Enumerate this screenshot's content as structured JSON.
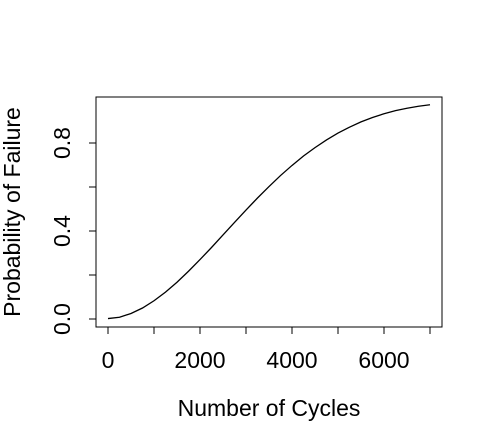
{
  "chart_data": {
    "type": "line",
    "title": "",
    "xlabel": "Number of Cycles",
    "ylabel": "Probability of Failure",
    "xlim": [
      0,
      7000
    ],
    "ylim": [
      0,
      1
    ],
    "x_ticks": [
      0,
      1000,
      2000,
      3000,
      4000,
      5000,
      6000,
      7000
    ],
    "x_tick_labels": [
      "0",
      "",
      "2000",
      "",
      "4000",
      "",
      "6000",
      ""
    ],
    "y_ticks": [
      0,
      0.2,
      0.4,
      0.6,
      0.8
    ],
    "y_tick_labels": [
      "0.0",
      "",
      "0.4",
      "",
      "0.8"
    ],
    "grid": false,
    "line_color": "#000000",
    "series": [
      {
        "x": [
          0,
          250,
          500,
          750,
          1000,
          1250,
          1500,
          1750,
          2000,
          2250,
          2500,
          2750,
          3000,
          3250,
          3500,
          3750,
          4000,
          4250,
          4500,
          4750,
          5000,
          5250,
          5500,
          5750,
          6000,
          6250,
          6500,
          6750,
          7000
        ],
        "values": [
          0.002,
          0.008,
          0.025,
          0.05,
          0.083,
          0.122,
          0.167,
          0.217,
          0.27,
          0.325,
          0.382,
          0.439,
          0.495,
          0.55,
          0.602,
          0.652,
          0.698,
          0.741,
          0.779,
          0.814,
          0.845,
          0.872,
          0.896,
          0.916,
          0.933,
          0.947,
          0.958,
          0.967,
          0.974
        ]
      }
    ]
  }
}
